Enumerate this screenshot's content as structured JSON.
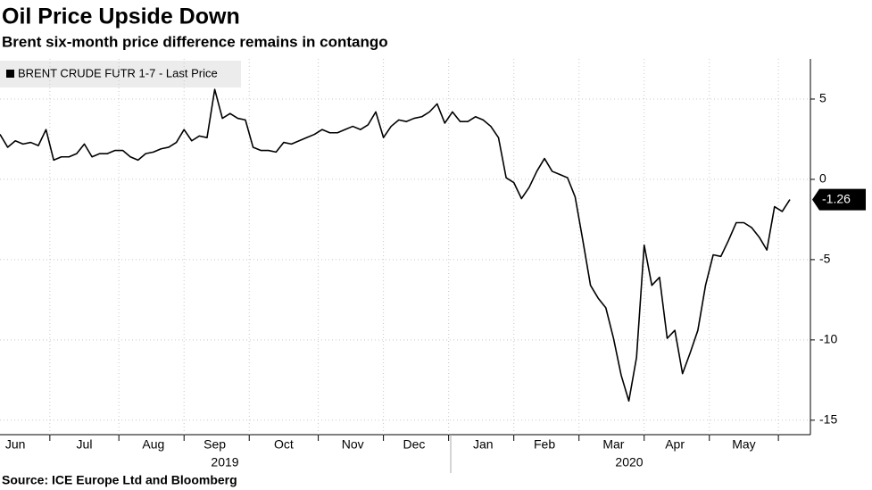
{
  "chart_data": {
    "type": "line",
    "title": "Oil Price Upside Down",
    "subtitle": "Brent six-month price difference remains in contango",
    "source": "Source: ICE Europe Ltd and Bloomberg",
    "years": [
      "2019",
      "2020"
    ],
    "categories": [
      null,
      null,
      "Jun",
      null,
      null,
      null,
      null,
      null,
      null,
      null,
      null,
      "Jul",
      null,
      null,
      null,
      null,
      null,
      null,
      null,
      null,
      "Aug",
      null,
      null,
      null,
      null,
      null,
      null,
      null,
      "Sep",
      null,
      null,
      null,
      null,
      null,
      null,
      null,
      null,
      "Oct",
      null,
      null,
      null,
      null,
      null,
      null,
      null,
      null,
      "Nov",
      null,
      null,
      null,
      null,
      null,
      null,
      null,
      "Dec",
      null,
      null,
      null,
      null,
      null,
      null,
      null,
      null,
      "Jan",
      null,
      null,
      null,
      null,
      null,
      null,
      null,
      "Feb",
      null,
      null,
      null,
      null,
      null,
      null,
      null,
      null,
      "Mar",
      null,
      null,
      null,
      null,
      null,
      null,
      null,
      "Apr",
      null,
      null,
      null,
      null,
      null,
      null,
      null,
      null,
      "May",
      null,
      null,
      null,
      null,
      null,
      null
    ],
    "series": [
      {
        "name": "BRENT CRUDE FUTR 1-7 - Last Price",
        "color": "#000000",
        "values": [
          2.8,
          2.0,
          2.4,
          2.2,
          2.3,
          2.1,
          3.1,
          1.2,
          1.4,
          1.4,
          1.6,
          2.2,
          1.4,
          1.6,
          1.6,
          1.8,
          1.8,
          1.4,
          1.2,
          1.6,
          1.7,
          1.9,
          2.0,
          2.3,
          3.1,
          2.4,
          2.7,
          2.6,
          5.6,
          3.8,
          4.1,
          3.8,
          3.7,
          2.0,
          1.8,
          1.8,
          1.7,
          2.3,
          2.2,
          2.4,
          2.6,
          2.8,
          3.1,
          2.9,
          2.9,
          3.1,
          3.3,
          3.1,
          3.4,
          4.2,
          2.6,
          3.3,
          3.7,
          3.6,
          3.8,
          3.9,
          4.2,
          4.7,
          3.5,
          4.2,
          3.6,
          3.6,
          3.9,
          3.7,
          3.3,
          2.6,
          0.1,
          -0.2,
          -1.2,
          -0.5,
          0.5,
          1.3,
          0.5,
          0.3,
          0.1,
          -1.1,
          -3.8,
          -6.6,
          -7.4,
          -8.0,
          -9.9,
          -12.2,
          -13.8,
          -11.1,
          -4.1,
          -6.6,
          -6.1,
          -9.9,
          -9.4,
          -12.1,
          -10.8,
          -9.4,
          -6.6,
          -4.7,
          -4.8,
          -3.8,
          -2.7,
          -2.7,
          -3.0,
          -3.6,
          -4.4,
          -1.7,
          -2.0,
          -1.26
        ]
      }
    ],
    "ylim": [
      -15.9,
      7.5
    ],
    "yticks": [
      5,
      0,
      -5,
      -10,
      -15
    ],
    "grid": true
  }
}
